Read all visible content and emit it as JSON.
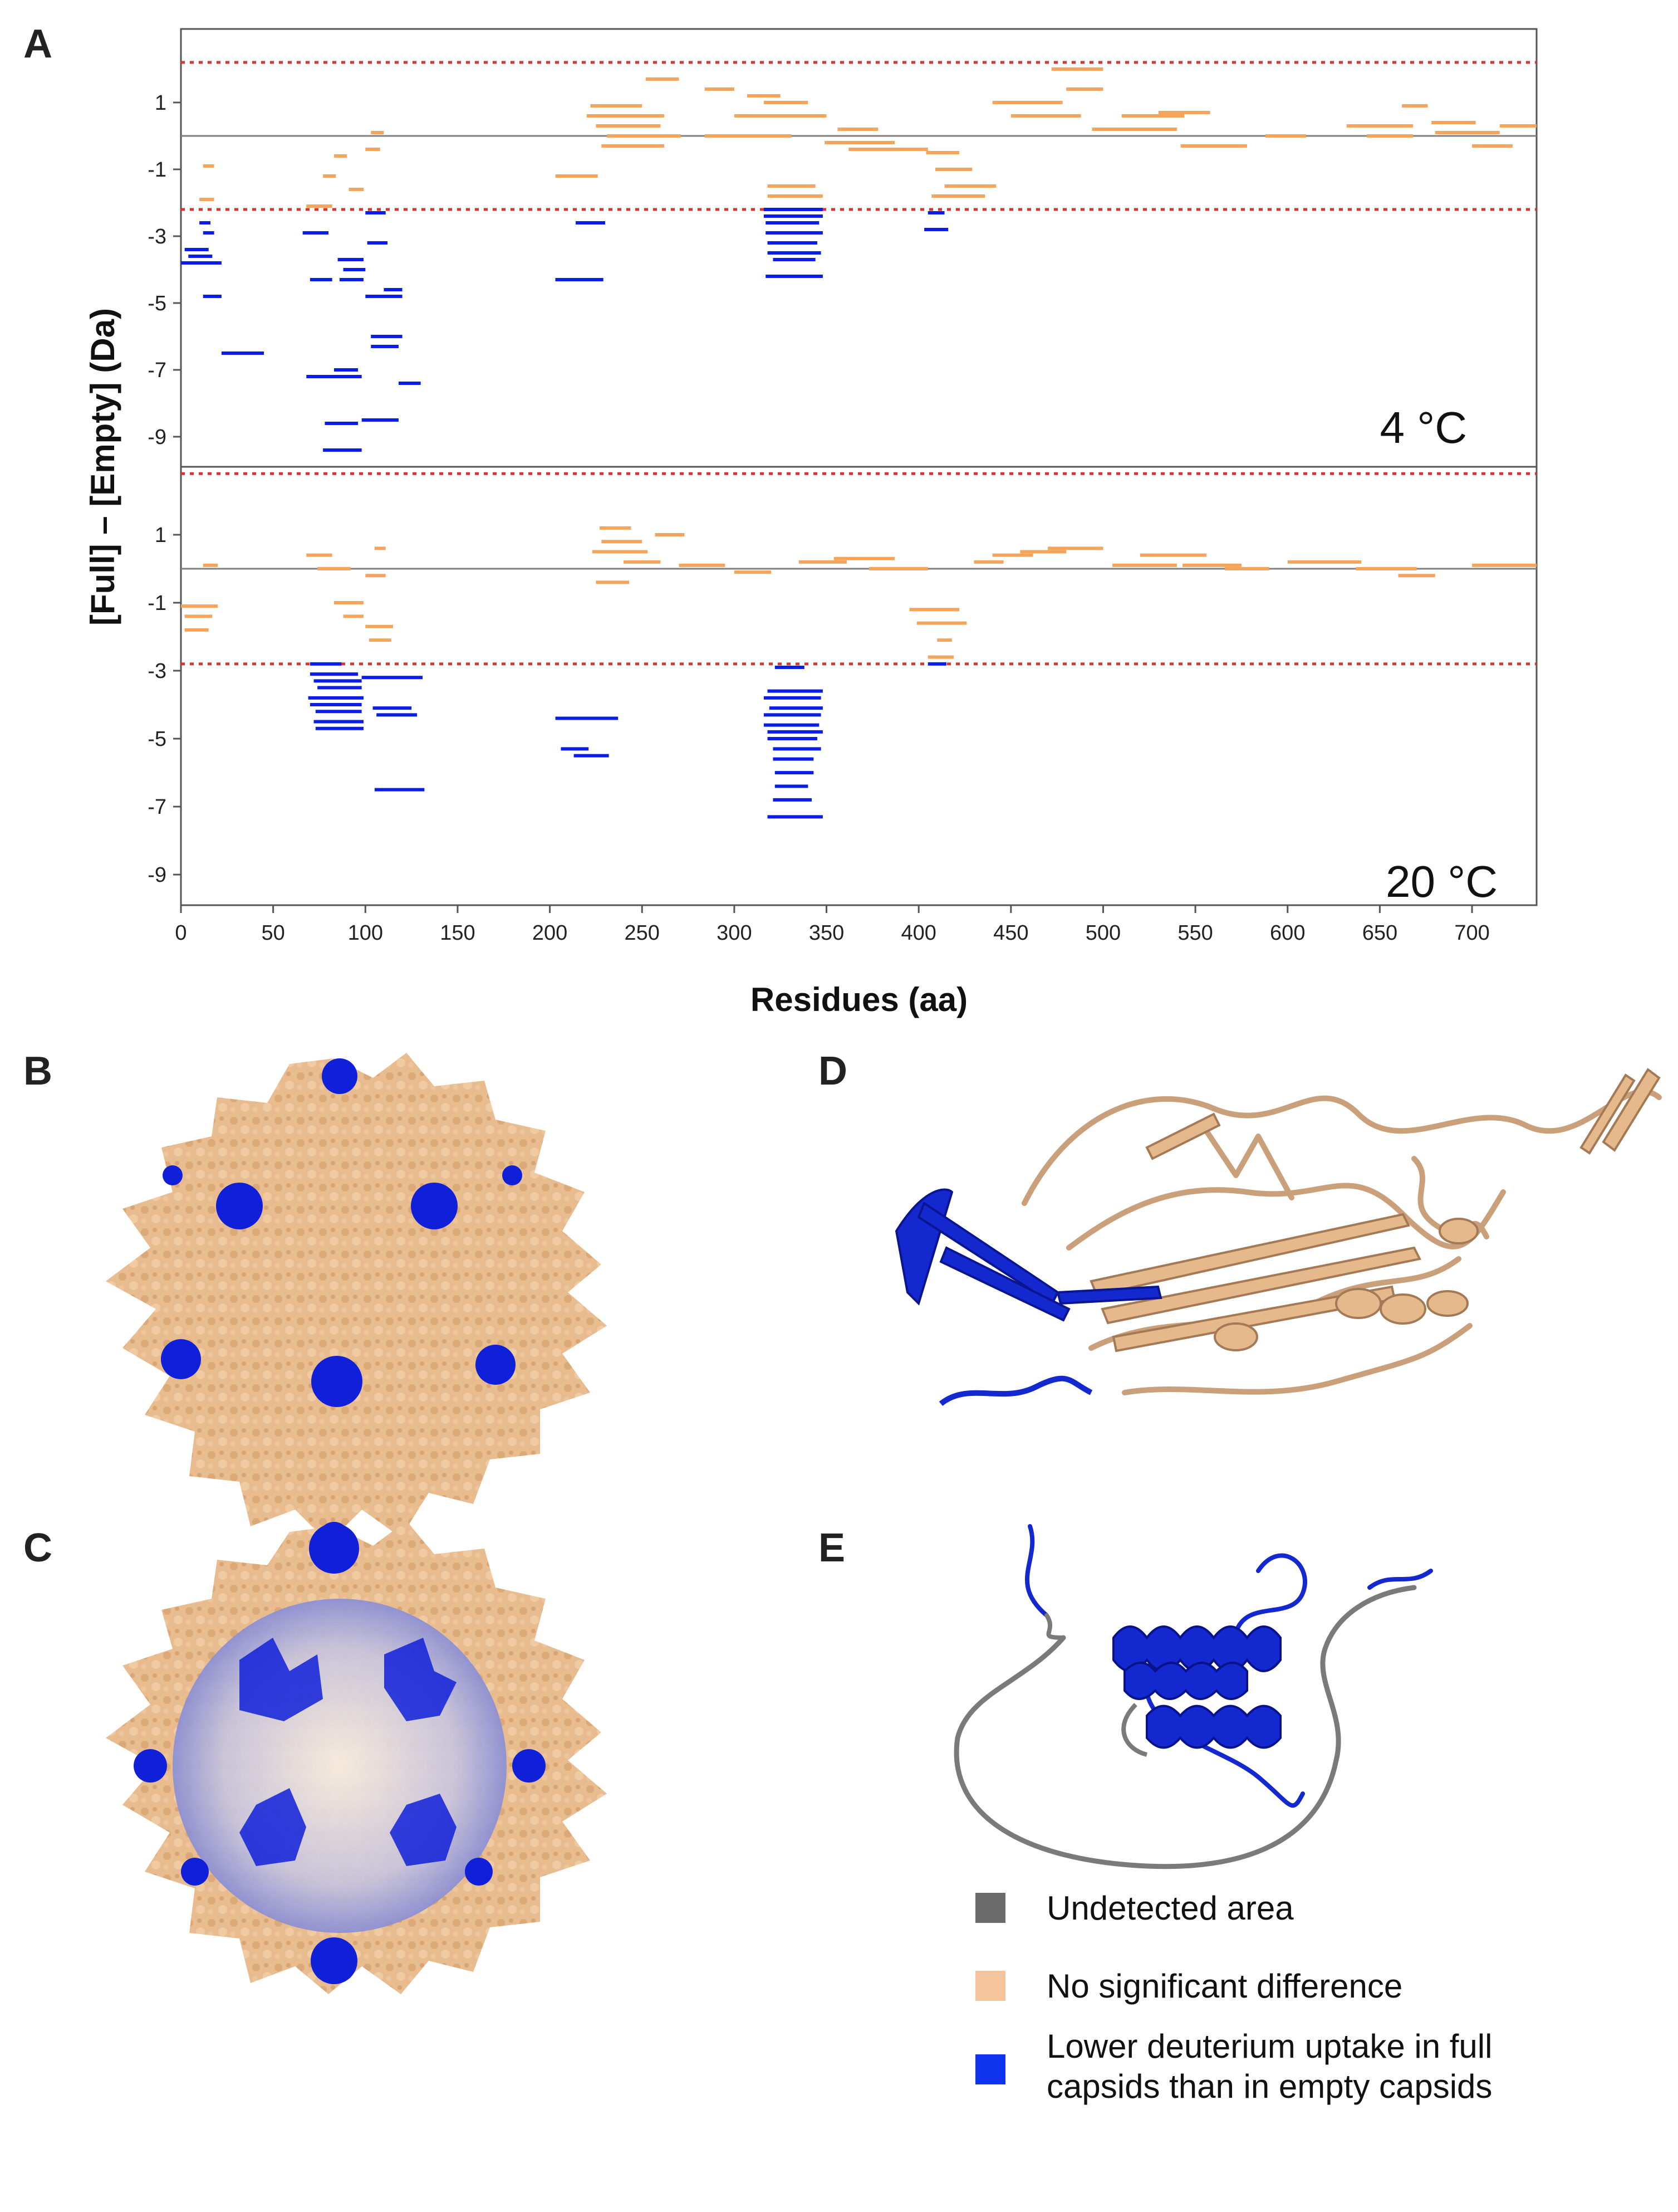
{
  "figure": {
    "panel_labels": {
      "a": "A",
      "b": "B",
      "c": "C",
      "d": "D",
      "e": "E"
    },
    "legend": [
      {
        "label": "Undetected area",
        "color": "#6b6b6b"
      },
      {
        "label": "No significant difference",
        "color": "#f5c49a"
      },
      {
        "label": "Lower deuterium uptake in full\ncapsids than in empty capsids",
        "color": "#1033f0"
      }
    ],
    "structures": {
      "capsid_color": "#e8bc8f",
      "highlight_color": "#1020d8",
      "undetected_color": "#7a7a7a",
      "icons": [
        "capsid-surface-outer",
        "capsid-surface-cutaway",
        "vp-ribbon",
        "vp1u-ribbon"
      ]
    }
  },
  "chart_data": {
    "type": "scatter",
    "xlabel": "Residues (aa)",
    "ylabel": "[Full] – [Empty] (Da)",
    "xlim": [
      0,
      735
    ],
    "x_ticks": [
      0,
      50,
      100,
      150,
      200,
      250,
      300,
      350,
      400,
      450,
      500,
      550,
      600,
      650,
      700
    ],
    "y_ticks": [
      1,
      -1,
      -3,
      -5,
      -7,
      -9
    ],
    "colors": {
      "significant": "#0a1ee8",
      "not_significant": "#f5a45c",
      "threshold": "#e03030",
      "zero_line": "#808080"
    },
    "panels": [
      {
        "label": "4 °C",
        "ylim": [
          -9.9,
          3.2
        ],
        "threshold": 2.2,
        "significant_segments": [
          [
            2,
            15,
            -3.4
          ],
          [
            4,
            17,
            -3.6
          ],
          [
            0,
            22,
            -3.8
          ],
          [
            10,
            16,
            -2.6
          ],
          [
            12,
            18,
            -2.9
          ],
          [
            12,
            22,
            -4.8
          ],
          [
            22,
            45,
            -6.5
          ],
          [
            66,
            80,
            -2.9
          ],
          [
            70,
            82,
            -4.3
          ],
          [
            68,
            88,
            -7.2
          ],
          [
            83,
            96,
            -7.0
          ],
          [
            82,
            98,
            -7.2
          ],
          [
            78,
            96,
            -8.6
          ],
          [
            77,
            98,
            -9.4
          ],
          [
            85,
            99,
            -3.7
          ],
          [
            88,
            100,
            -4.0
          ],
          [
            86,
            99,
            -4.3
          ],
          [
            100,
            111,
            -2.3
          ],
          [
            101,
            112,
            -3.2
          ],
          [
            100,
            120,
            -4.8
          ],
          [
            103,
            120,
            -6.0
          ],
          [
            103,
            118,
            -6.3
          ],
          [
            110,
            120,
            -4.6
          ],
          [
            98,
            118,
            -8.5
          ],
          [
            118,
            130,
            -7.4
          ],
          [
            214,
            230,
            -2.6
          ],
          [
            203,
            229,
            -4.3
          ],
          [
            316,
            348,
            -2.2
          ],
          [
            316,
            348,
            -2.4
          ],
          [
            317,
            346,
            -2.6
          ],
          [
            317,
            348,
            -2.9
          ],
          [
            318,
            345,
            -3.2
          ],
          [
            318,
            347,
            -3.5
          ],
          [
            321,
            344,
            -3.7
          ],
          [
            317,
            348,
            -4.2
          ],
          [
            405,
            414,
            -2.3
          ],
          [
            403,
            416,
            -2.8
          ]
        ],
        "nonsignificant_segments": [
          [
            12,
            18,
            -0.9
          ],
          [
            10,
            18,
            -1.9
          ],
          [
            68,
            82,
            -2.1
          ],
          [
            77,
            84,
            -1.2
          ],
          [
            83,
            90,
            -0.6
          ],
          [
            100,
            108,
            -0.4
          ],
          [
            103,
            110,
            0.1
          ],
          [
            91,
            99,
            -1.6
          ],
          [
            203,
            226,
            -1.2
          ],
          [
            222,
            250,
            0.9
          ],
          [
            220,
            262,
            0.6
          ],
          [
            225,
            260,
            0.3
          ],
          [
            231,
            271,
            0.0
          ],
          [
            228,
            262,
            -0.3
          ],
          [
            252,
            270,
            1.7
          ],
          [
            284,
            300,
            1.4
          ],
          [
            307,
            325,
            1.2
          ],
          [
            316,
            340,
            1.0
          ],
          [
            300,
            350,
            0.6
          ],
          [
            284,
            331,
            0.0
          ],
          [
            318,
            344,
            -1.5
          ],
          [
            318,
            348,
            -1.8
          ],
          [
            356,
            378,
            0.2
          ],
          [
            349,
            387,
            -0.2
          ],
          [
            362,
            405,
            -0.4
          ],
          [
            404,
            422,
            -0.5
          ],
          [
            409,
            429,
            -1.0
          ],
          [
            414,
            442,
            -1.5
          ],
          [
            407,
            436,
            -1.8
          ],
          [
            440,
            478,
            1.0
          ],
          [
            450,
            488,
            0.6
          ],
          [
            472,
            500,
            2.0
          ],
          [
            480,
            500,
            1.4
          ],
          [
            494,
            540,
            0.2
          ],
          [
            510,
            544,
            0.6
          ],
          [
            530,
            558,
            0.7
          ],
          [
            542,
            578,
            -0.3
          ],
          [
            588,
            610,
            0.0
          ],
          [
            632,
            668,
            0.3
          ],
          [
            643,
            668,
            0.0
          ],
          [
            662,
            676,
            0.9
          ],
          [
            678,
            702,
            0.4
          ],
          [
            680,
            715,
            0.1
          ],
          [
            700,
            722,
            -0.3
          ],
          [
            715,
            735,
            0.3
          ]
        ]
      },
      {
        "label": "20 °C",
        "ylim": [
          -9.9,
          3.0
        ],
        "threshold": 2.8,
        "significant_segments": [
          [
            70,
            87,
            -2.8
          ],
          [
            70,
            96,
            -3.1
          ],
          [
            72,
            98,
            -3.3
          ],
          [
            74,
            98,
            -3.5
          ],
          [
            69,
            99,
            -3.8
          ],
          [
            70,
            98,
            -4.0
          ],
          [
            73,
            98,
            -4.2
          ],
          [
            72,
            99,
            -4.5
          ],
          [
            73,
            99,
            -4.7
          ],
          [
            104,
            125,
            -4.1
          ],
          [
            106,
            128,
            -4.3
          ],
          [
            98,
            131,
            -3.2
          ],
          [
            105,
            132,
            -6.5
          ],
          [
            203,
            237,
            -4.4
          ],
          [
            206,
            221,
            -5.3
          ],
          [
            213,
            232,
            -5.5
          ],
          [
            322,
            338,
            -2.9
          ],
          [
            318,
            348,
            -3.6
          ],
          [
            316,
            347,
            -3.8
          ],
          [
            319,
            348,
            -4.1
          ],
          [
            316,
            347,
            -4.3
          ],
          [
            316,
            346,
            -4.6
          ],
          [
            318,
            348,
            -4.8
          ],
          [
            318,
            345,
            -5.0
          ],
          [
            321,
            347,
            -5.3
          ],
          [
            321,
            343,
            -5.6
          ],
          [
            322,
            343,
            -6.0
          ],
          [
            322,
            340,
            -6.4
          ],
          [
            321,
            342,
            -6.8
          ],
          [
            318,
            348,
            -7.3
          ],
          [
            405,
            415,
            -2.8
          ]
        ],
        "nonsignificant_segments": [
          [
            12,
            20,
            0.1
          ],
          [
            0,
            20,
            -1.1
          ],
          [
            2,
            17,
            -1.4
          ],
          [
            2,
            15,
            -1.8
          ],
          [
            68,
            82,
            0.4
          ],
          [
            74,
            92,
            0.0
          ],
          [
            88,
            99,
            -1.4
          ],
          [
            83,
            99,
            -1.0
          ],
          [
            100,
            111,
            -0.2
          ],
          [
            100,
            115,
            -1.7
          ],
          [
            102,
            114,
            -2.1
          ],
          [
            105,
            111,
            0.6
          ],
          [
            227,
            244,
            1.2
          ],
          [
            223,
            253,
            0.5
          ],
          [
            225,
            243,
            -0.4
          ],
          [
            228,
            250,
            0.8
          ],
          [
            240,
            260,
            0.2
          ],
          [
            257,
            273,
            1.0
          ],
          [
            270,
            295,
            0.1
          ],
          [
            300,
            320,
            -0.1
          ],
          [
            335,
            361,
            0.2
          ],
          [
            354,
            387,
            0.3
          ],
          [
            373,
            405,
            0.0
          ],
          [
            395,
            422,
            -1.2
          ],
          [
            399,
            426,
            -1.6
          ],
          [
            410,
            418,
            -2.1
          ],
          [
            405,
            419,
            -2.6
          ],
          [
            430,
            446,
            0.2
          ],
          [
            440,
            462,
            0.4
          ],
          [
            455,
            480,
            0.5
          ],
          [
            470,
            500,
            0.6
          ],
          [
            505,
            540,
            0.1
          ],
          [
            520,
            556,
            0.4
          ],
          [
            543,
            575,
            0.1
          ],
          [
            566,
            590,
            0.0
          ],
          [
            600,
            640,
            0.2
          ],
          [
            637,
            670,
            0.0
          ],
          [
            660,
            680,
            -0.2
          ],
          [
            700,
            735,
            0.1
          ]
        ]
      }
    ]
  }
}
